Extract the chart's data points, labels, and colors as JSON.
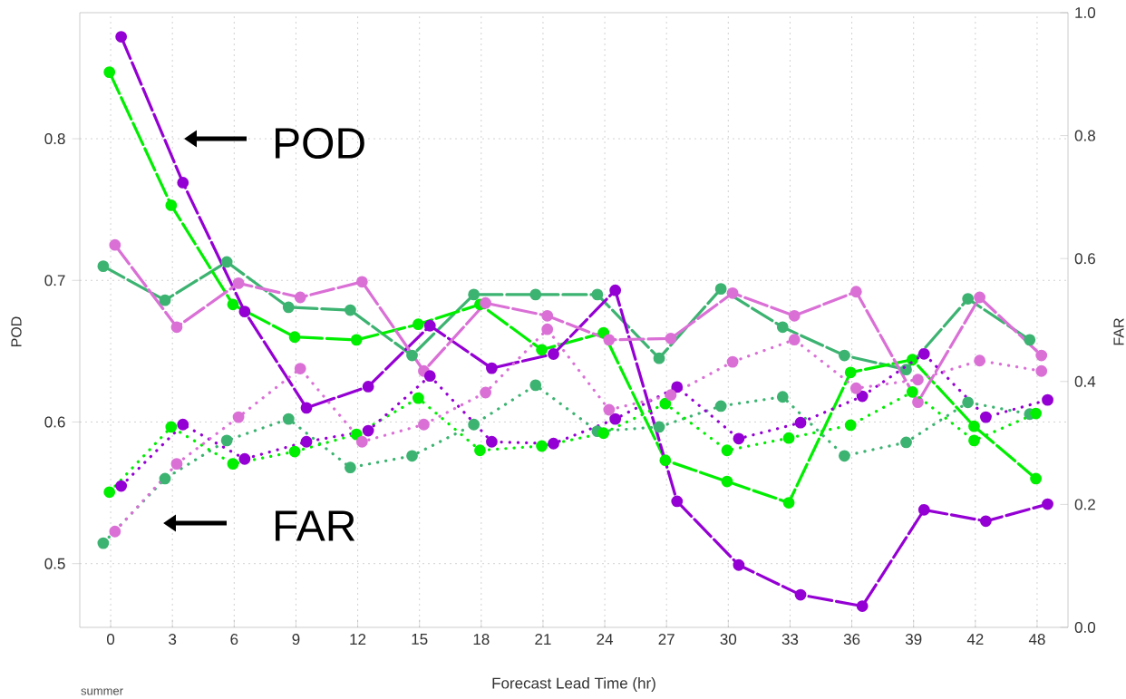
{
  "chart_data": {
    "type": "line",
    "xlabel": "Forecast Lead Time (hr)",
    "ylabel": "POD",
    "y2label": "FAR",
    "annotations": [
      "POD",
      "FAR",
      "summer"
    ],
    "categories": [
      "0",
      "3",
      "6",
      "9",
      "12",
      "15",
      "18",
      "21",
      "24",
      "27",
      "30",
      "33",
      "36",
      "39",
      "42",
      "48"
    ],
    "ylim": [
      0.455,
      0.889
    ],
    "yticks": [
      0.5,
      0.6,
      0.7,
      0.8
    ],
    "y2lim": [
      0,
      1
    ],
    "y2ticks": [
      {
        "value": 0,
        "label": "0.0"
      },
      0.2,
      0.4,
      0.6,
      0.8,
      {
        "value": 1,
        "label": "1.0"
      }
    ],
    "grid": true,
    "marker": "circle",
    "series": [
      {
        "color": "#3cb371",
        "line_style": "dashed",
        "values": [
          0.71,
          0.686,
          0.713,
          0.681,
          0.679,
          0.647,
          0.69,
          0.69,
          0.69,
          0.645,
          0.694,
          0.667,
          0.647,
          0.637,
          0.687,
          0.658
        ]
      },
      {
        "color": "#00ee00",
        "line_style": "dashed",
        "values": [
          0.847,
          0.753,
          0.683,
          0.66,
          0.658,
          0.669,
          0.683,
          0.651,
          0.663,
          0.573,
          0.558,
          0.543,
          0.635,
          0.644,
          0.597,
          0.56
        ]
      },
      {
        "color": "#9400d3",
        "line_style": "dashed",
        "values": [
          0.872,
          0.769,
          0.678,
          0.61,
          0.625,
          0.668,
          0.638,
          0.648,
          0.693,
          0.544,
          0.499,
          0.478,
          0.47,
          0.538,
          0.53,
          0.542
        ]
      },
      {
        "color": "#da70d6",
        "line_style": "dashed",
        "values": [
          0.725,
          0.667,
          0.698,
          0.688,
          0.699,
          0.636,
          0.684,
          0.675,
          0.658,
          0.659,
          0.691,
          0.675,
          0.692,
          0.614,
          0.688,
          0.647
        ]
      },
      {
        "color": "#3cb371",
        "line_style": "dotted",
        "axis": "y2",
        "values": [
          0.137,
          0.242,
          0.304,
          0.339,
          0.26,
          0.279,
          0.33,
          0.394,
          0.319,
          0.326,
          0.36,
          0.375,
          0.279,
          0.301,
          0.366,
          0.347
        ]
      },
      {
        "color": "#00ee00",
        "line_style": "dotted",
        "axis": "y2",
        "values": [
          0.22,
          0.326,
          0.266,
          0.286,
          0.314,
          0.373,
          0.288,
          0.295,
          0.316,
          0.364,
          0.288,
          0.308,
          0.329,
          0.383,
          0.304,
          0.348
        ]
      },
      {
        "color": "#9400d3",
        "line_style": "dotted",
        "axis": "y2",
        "values": [
          0.23,
          0.33,
          0.274,
          0.302,
          0.32,
          0.409,
          0.302,
          0.299,
          0.339,
          0.391,
          0.307,
          0.333,
          0.376,
          0.445,
          0.342,
          0.37
        ]
      },
      {
        "color": "#da70d6",
        "line_style": "dotted",
        "axis": "y2",
        "values": [
          0.156,
          0.266,
          0.342,
          0.421,
          0.302,
          0.33,
          0.382,
          0.485,
          0.354,
          0.378,
          0.432,
          0.468,
          0.389,
          0.403,
          0.434,
          0.417
        ]
      }
    ]
  }
}
